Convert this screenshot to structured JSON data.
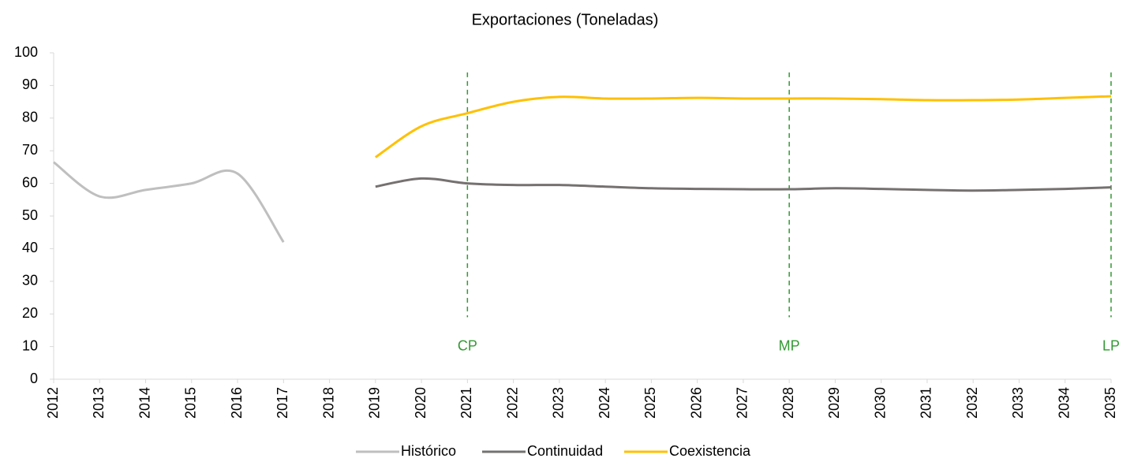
{
  "chart_data": {
    "type": "line",
    "title": "Exportaciones (Toneladas)",
    "categories": [
      "2012",
      "2013",
      "2014",
      "2015",
      "2016",
      "2017",
      "2018",
      "2019",
      "2020",
      "2021",
      "2022",
      "2023",
      "2024",
      "2025",
      "2026",
      "2027",
      "2028",
      "2029",
      "2030",
      "2031",
      "2032",
      "2033",
      "2034",
      "2035"
    ],
    "series": [
      {
        "name": "Histórico",
        "color": "#bfbfbf",
        "values": [
          66.5,
          56,
          58,
          60,
          63,
          42,
          null,
          null,
          null,
          null,
          null,
          null,
          null,
          null,
          null,
          null,
          null,
          null,
          null,
          null,
          null,
          null,
          null,
          null
        ]
      },
      {
        "name": "Continuidad",
        "color": "#767171",
        "values": [
          null,
          null,
          null,
          null,
          null,
          null,
          null,
          59,
          61.5,
          60,
          59.5,
          59.5,
          59,
          58.5,
          58.3,
          58.2,
          58.2,
          58.5,
          58.3,
          58,
          57.8,
          58,
          58.3,
          58.8
        ]
      },
      {
        "name": "Coexistencia",
        "color": "#ffc000",
        "values": [
          null,
          null,
          null,
          null,
          null,
          null,
          null,
          68,
          77.5,
          81.5,
          85,
          86.5,
          86,
          86,
          86.2,
          86,
          86,
          86,
          85.8,
          85.5,
          85.5,
          85.7,
          86.2,
          86.7
        ]
      }
    ],
    "markers": [
      {
        "category": "2021",
        "label": "CP"
      },
      {
        "category": "2028",
        "label": "MP"
      },
      {
        "category": "2035",
        "label": "LP"
      }
    ],
    "marker_color": "#339933",
    "ylim": [
      0,
      100
    ],
    "yticks": [
      0,
      10,
      20,
      30,
      40,
      50,
      60,
      70,
      80,
      90,
      100
    ],
    "grid": false,
    "legend": "bottom"
  }
}
